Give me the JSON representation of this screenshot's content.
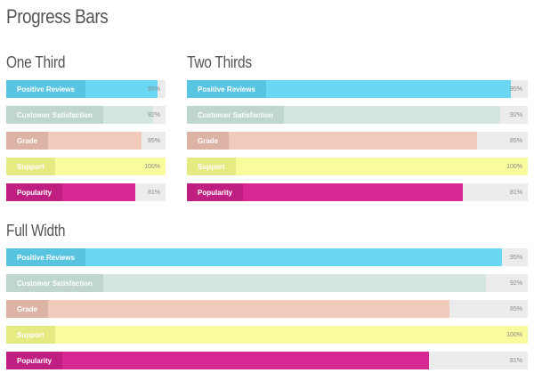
{
  "page_title": "Progress Bars",
  "sections": [
    {
      "title": "One Third",
      "bars": [
        {
          "label": "Positive Reviews",
          "percent": 95,
          "percent_text": "95%",
          "fill": "#6ad8f2",
          "label_bg": "#58c4e0"
        },
        {
          "label": "Customer Satisfaction",
          "percent": 92,
          "percent_text": "92%",
          "fill": "#d3e7df",
          "label_bg": "#bfd6cd"
        },
        {
          "label": "Grade",
          "percent": 85,
          "percent_text": "85%",
          "fill": "#f0cbbc",
          "label_bg": "#dcb3a5"
        },
        {
          "label": "Support",
          "percent": 100,
          "percent_text": "100%",
          "fill": "#f8fc9c",
          "label_bg": "#e6ea83"
        },
        {
          "label": "Popularity",
          "percent": 81,
          "percent_text": "81%",
          "fill": "#d62893",
          "label_bg": "#bf1f80"
        }
      ]
    },
    {
      "title": "Two Thirds",
      "bars": [
        {
          "label": "Positive Reviews",
          "percent": 95,
          "percent_text": "95%",
          "fill": "#6ad8f2",
          "label_bg": "#58c4e0"
        },
        {
          "label": "Customer Satisfaction",
          "percent": 92,
          "percent_text": "92%",
          "fill": "#d3e7df",
          "label_bg": "#bfd6cd"
        },
        {
          "label": "Grade",
          "percent": 85,
          "percent_text": "85%",
          "fill": "#f0cbbc",
          "label_bg": "#dcb3a5"
        },
        {
          "label": "Support",
          "percent": 100,
          "percent_text": "100%",
          "fill": "#f8fc9c",
          "label_bg": "#e6ea83"
        },
        {
          "label": "Popularity",
          "percent": 81,
          "percent_text": "81%",
          "fill": "#d62893",
          "label_bg": "#bf1f80"
        }
      ]
    },
    {
      "title": "Full Width",
      "bars": [
        {
          "label": "Positive Reviews",
          "percent": 95,
          "percent_text": "95%",
          "fill": "#6ad8f2",
          "label_bg": "#58c4e0"
        },
        {
          "label": "Customer Satisfaction",
          "percent": 92,
          "percent_text": "92%",
          "fill": "#d3e7df",
          "label_bg": "#bfd6cd"
        },
        {
          "label": "Grade",
          "percent": 85,
          "percent_text": "85%",
          "fill": "#f0cbbc",
          "label_bg": "#dcb3a5"
        },
        {
          "label": "Support",
          "percent": 100,
          "percent_text": "100%",
          "fill": "#f8fc9c",
          "label_bg": "#e6ea83"
        },
        {
          "label": "Popularity",
          "percent": 81,
          "percent_text": "81%",
          "fill": "#d62893",
          "label_bg": "#bf1f80"
        }
      ]
    }
  ]
}
